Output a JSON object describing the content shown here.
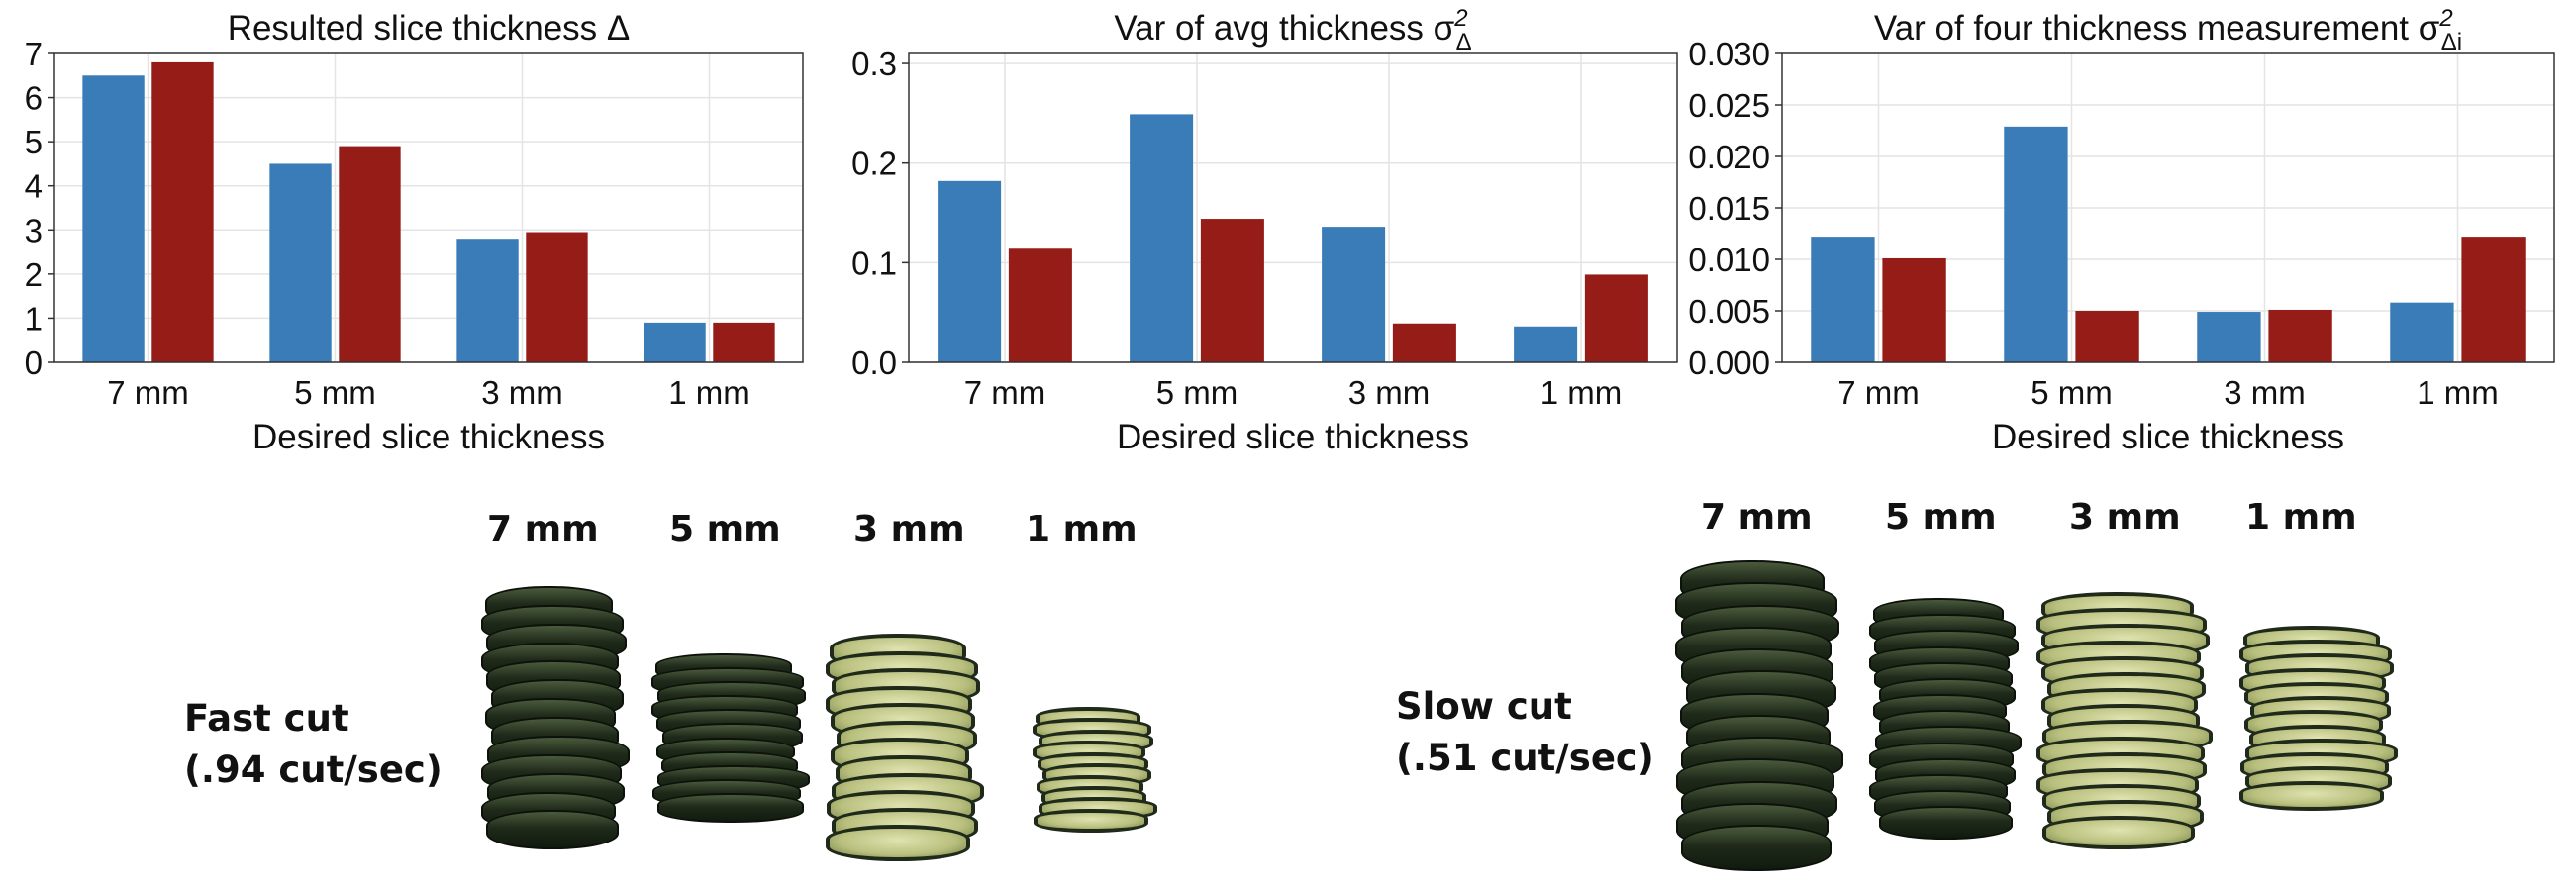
{
  "colors": {
    "blue": "#3a7cb8",
    "red": "#951c17",
    "zucchini_skin": "#1f2a1a",
    "zucchini_flesh": "#b9c07e"
  },
  "chart_data": [
    {
      "type": "bar",
      "title": "Resulted slice thickness Δ",
      "xlabel": "Desired slice thickness",
      "ylabel": "",
      "categories": [
        "7 mm",
        "5 mm",
        "3 mm",
        "1 mm"
      ],
      "series": [
        {
          "color": "#3a7cb8",
          "values": [
            6.5,
            4.5,
            2.8,
            0.9
          ]
        },
        {
          "color": "#951c17",
          "values": [
            6.8,
            4.9,
            2.95,
            0.9
          ]
        }
      ],
      "ylim": [
        0,
        7
      ],
      "yticks": [
        "0",
        "1",
        "2",
        "3",
        "4",
        "5",
        "6",
        "7"
      ],
      "ytick_values": [
        0,
        1,
        2,
        3,
        4,
        5,
        6,
        7
      ],
      "grid": true
    },
    {
      "type": "bar",
      "title": "Var of avg thickness σ",
      "title_sup": "2",
      "title_sub": "Δ",
      "xlabel": "Desired slice thickness",
      "ylabel": "",
      "categories": [
        "7 mm",
        "5 mm",
        "3 mm",
        "1 mm"
      ],
      "series": [
        {
          "color": "#3a7cb8",
          "values": [
            0.182,
            0.249,
            0.136,
            0.036
          ]
        },
        {
          "color": "#951c17",
          "values": [
            0.114,
            0.144,
            0.039,
            0.088
          ]
        }
      ],
      "ylim": [
        0,
        0.31
      ],
      "yticks": [
        "0.0",
        "0.1",
        "0.2",
        "0.3"
      ],
      "ytick_values": [
        0,
        0.1,
        0.2,
        0.3
      ],
      "grid": true
    },
    {
      "type": "bar",
      "title": "Var of four thickness measurement σ",
      "title_sup": "2",
      "title_sub": "Δi",
      "xlabel": "Desired slice thickness",
      "ylabel": "",
      "categories": [
        "7 mm",
        "5 mm",
        "3 mm",
        "1 mm"
      ],
      "series": [
        {
          "color": "#3a7cb8",
          "values": [
            0.0122,
            0.0229,
            0.0049,
            0.0058
          ]
        },
        {
          "color": "#951c17",
          "values": [
            0.0101,
            0.005,
            0.0051,
            0.0122
          ]
        }
      ],
      "ylim": [
        0,
        0.03
      ],
      "yticks": [
        "0.000",
        "0.005",
        "0.010",
        "0.015",
        "0.020",
        "0.025",
        "0.030"
      ],
      "ytick_values": [
        0,
        0.005,
        0.01,
        0.015,
        0.02,
        0.025,
        0.03
      ],
      "grid": true
    }
  ],
  "photos": {
    "fast": {
      "cut_label_line1": "Fast cut",
      "cut_label_line2": "(.94 cut/sec)",
      "labels": [
        "7 mm",
        "5 mm",
        "3 mm",
        "1 mm"
      ]
    },
    "slow": {
      "cut_label_line1": "Slow cut",
      "cut_label_line2": "(.51 cut/sec)",
      "labels": [
        "7 mm",
        "5 mm",
        "3 mm",
        "1 mm"
      ]
    }
  }
}
